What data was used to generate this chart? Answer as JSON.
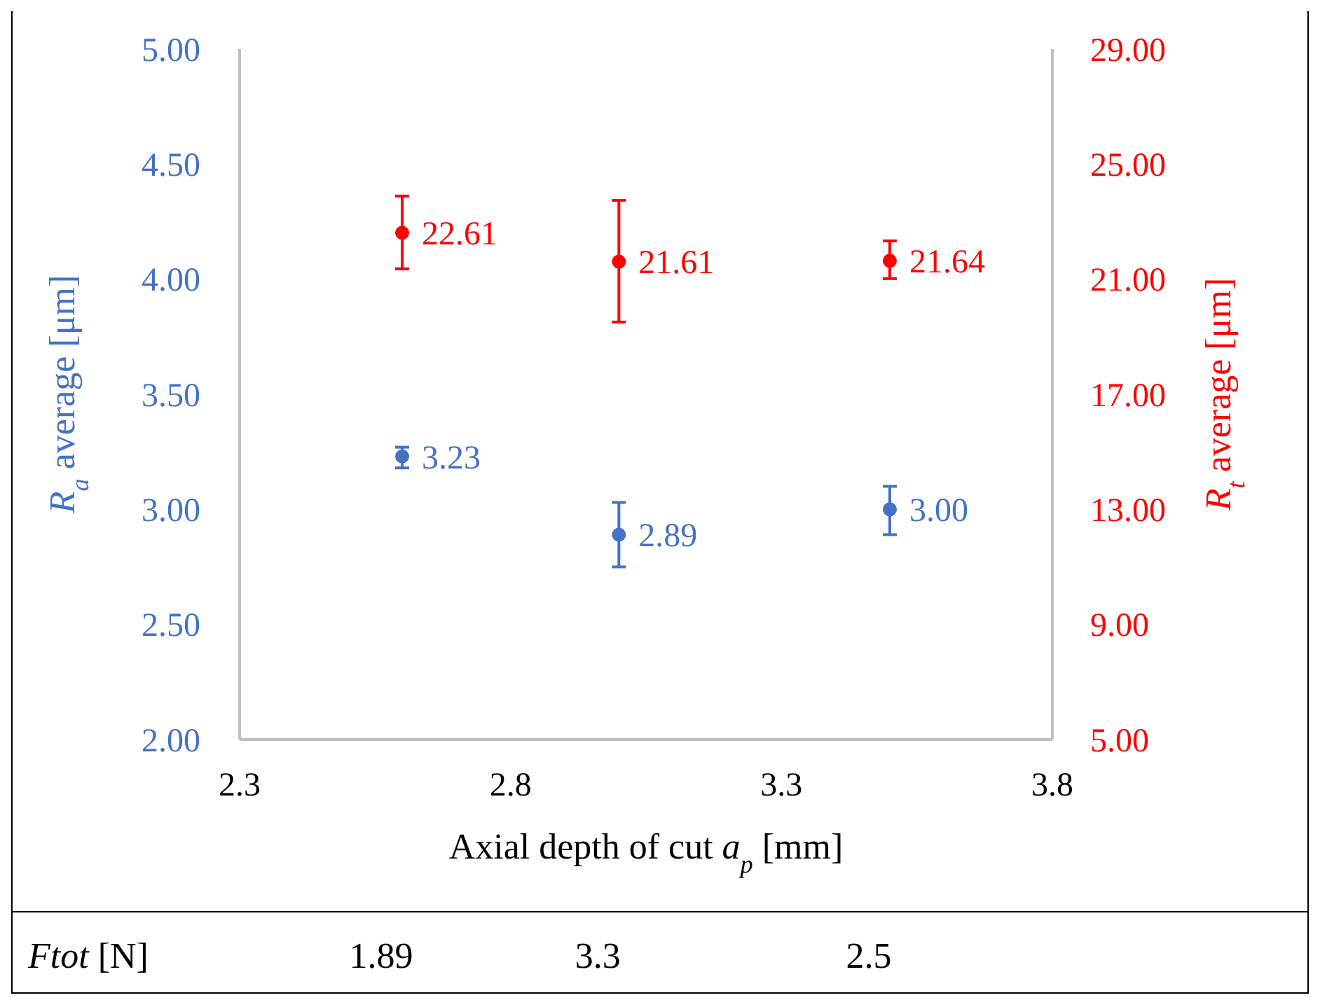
{
  "chart_data": {
    "type": "scatter",
    "x": [
      2.6,
      3.0,
      3.5
    ],
    "xlabel": "Axial depth of cut a$_{p}$ [mm]",
    "ylabel": "R$_{a}$ average [μm]",
    "y2label": "R$_{t}$ average [μm]",
    "xlim": [
      2.3,
      3.8
    ],
    "xticks": [
      2.3,
      2.8,
      3.3,
      3.8
    ],
    "ylim": [
      2,
      5
    ],
    "yticks": [
      {
        "value": 2,
        "label": "2.00"
      },
      {
        "value": 2.5,
        "label": "2.50"
      },
      {
        "value": 3,
        "label": "3.00"
      },
      {
        "value": 3.5,
        "label": "3.50"
      },
      {
        "value": 4,
        "label": "4.00"
      },
      {
        "value": 4.5,
        "label": "4.50"
      },
      {
        "value": 5,
        "label": "5.00"
      }
    ],
    "y2lim": [
      5,
      29
    ],
    "y2ticks": [
      {
        "value": 5,
        "label": "5.00"
      },
      {
        "value": 9,
        "label": "9.00"
      },
      {
        "value": 13,
        "label": "13.00"
      },
      {
        "value": 17,
        "label": "17.00"
      },
      {
        "value": 21,
        "label": "21.00"
      },
      {
        "value": 25,
        "label": "25.00"
      },
      {
        "value": 29,
        "label": "29.00"
      }
    ],
    "series": [
      {
        "color": "#4472c4",
        "values": [
          3.23,
          2.89,
          3.0
        ],
        "errors": [
          [
            3.18,
            3.27
          ],
          [
            2.75,
            3.03
          ],
          [
            2.89,
            3.1
          ]
        ],
        "value_labels": [
          "3.23",
          "2.89",
          "3.00"
        ]
      },
      {
        "color": "#ff0000",
        "axis": "y2",
        "values": [
          22.61,
          21.61,
          21.64
        ],
        "errors": [
          [
            21.36,
            23.89
          ],
          [
            19.51,
            23.74
          ],
          [
            21.02,
            22.33
          ]
        ],
        "value_labels": [
          "22.61",
          "21.61",
          "21.64"
        ]
      }
    ],
    "marker": "circle",
    "grid": false,
    "annotations": [
      "Ftot [N]",
      "1.89",
      "3.3",
      "2.5"
    ]
  }
}
